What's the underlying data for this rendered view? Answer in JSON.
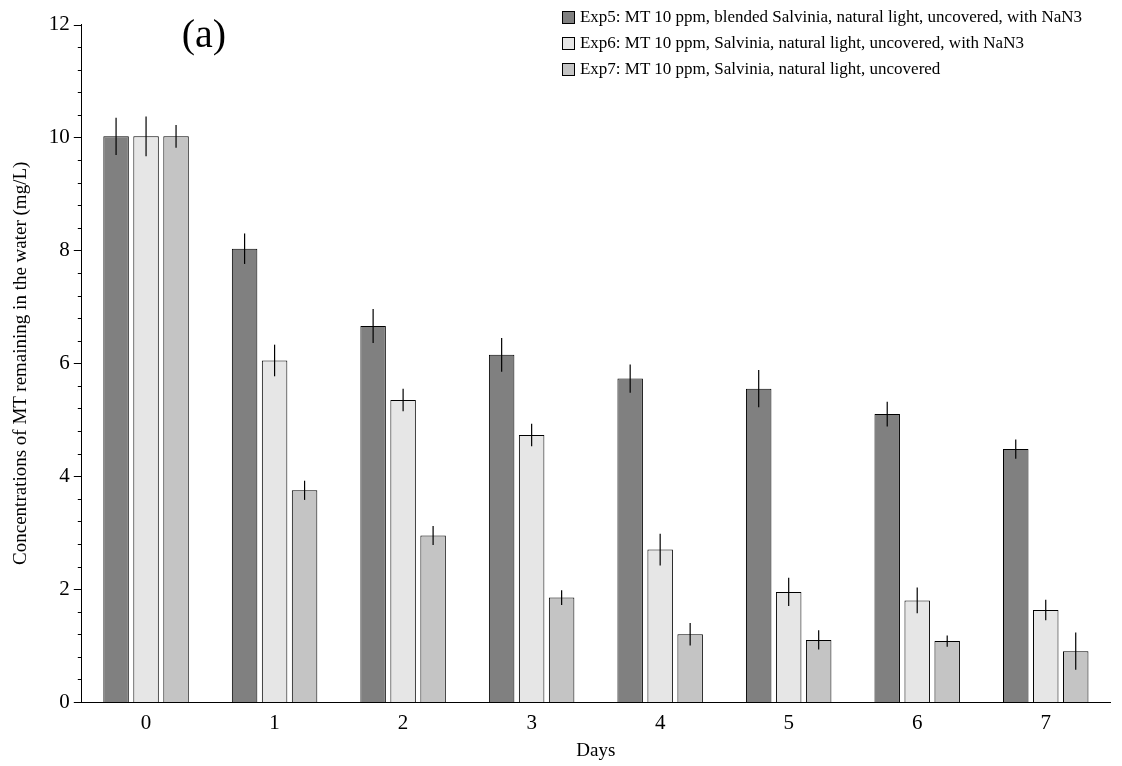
{
  "chart_data": {
    "type": "bar",
    "xlabel": "Days",
    "ylabel": "Concentrations of MT remaining in the water (mg/L)",
    "annotations": [
      "(a)"
    ],
    "categories": [
      "0",
      "1",
      "2",
      "3",
      "4",
      "5",
      "6",
      "7"
    ],
    "series": [
      {
        "name": "Exp5: MT 10 ppm, blended Salvinia, natural light, uncovered, with NaN3",
        "color": "#808080",
        "values": [
          10.02,
          8.03,
          6.66,
          6.15,
          5.73,
          5.55,
          5.1,
          4.48
        ],
        "errors": [
          0.33,
          0.27,
          0.3,
          0.3,
          0.25,
          0.33,
          0.22,
          0.17
        ]
      },
      {
        "name": "Exp6: MT 10 ppm, Salvinia, natural light, uncovered, with NaN3",
        "color": "#e6e6e6",
        "values": [
          10.02,
          6.05,
          5.35,
          4.73,
          2.7,
          1.95,
          1.8,
          1.63
        ],
        "errors": [
          0.35,
          0.28,
          0.2,
          0.2,
          0.28,
          0.25,
          0.23,
          0.18
        ]
      },
      {
        "name": "Exp7: MT 10 ppm, Salvinia, natural light, uncovered",
        "color": "#c4c4c4",
        "values": [
          10.02,
          3.75,
          2.95,
          1.85,
          1.2,
          1.1,
          1.08,
          0.9
        ],
        "errors": [
          0.2,
          0.17,
          0.17,
          0.13,
          0.2,
          0.17,
          0.1,
          0.33
        ]
      }
    ],
    "ylim": [
      0,
      12
    ],
    "yticks": [
      0,
      {
        "value": 0.4,
        "label": null
      },
      {
        "value": 0.8,
        "label": null
      },
      {
        "value": 1.2,
        "label": null
      },
      {
        "value": 1.6,
        "label": null
      },
      2,
      {
        "value": 2.4,
        "label": null
      },
      {
        "value": 2.8,
        "label": null
      },
      {
        "value": 3.2,
        "label": null
      },
      {
        "value": 3.6,
        "label": null
      },
      4,
      {
        "value": 4.4,
        "label": null
      },
      {
        "value": 4.8,
        "label": null
      },
      {
        "value": 5.2,
        "label": null
      },
      {
        "value": 5.6,
        "label": null
      },
      6,
      {
        "value": 6.4,
        "label": null
      },
      {
        "value": 6.8,
        "label": null
      },
      {
        "value": 7.2,
        "label": null
      },
      {
        "value": 7.6,
        "label": null
      },
      8,
      {
        "value": 8.4,
        "label": null
      },
      {
        "value": 8.8,
        "label": null
      },
      {
        "value": 9.2,
        "label": null
      },
      {
        "value": 9.6,
        "label": null
      },
      10,
      {
        "value": 10.4,
        "label": null
      },
      {
        "value": 10.8,
        "label": null
      },
      {
        "value": 11.2,
        "label": null
      },
      {
        "value": 11.6,
        "label": null
      },
      12
    ],
    "grid": false,
    "legend": "top right"
  }
}
